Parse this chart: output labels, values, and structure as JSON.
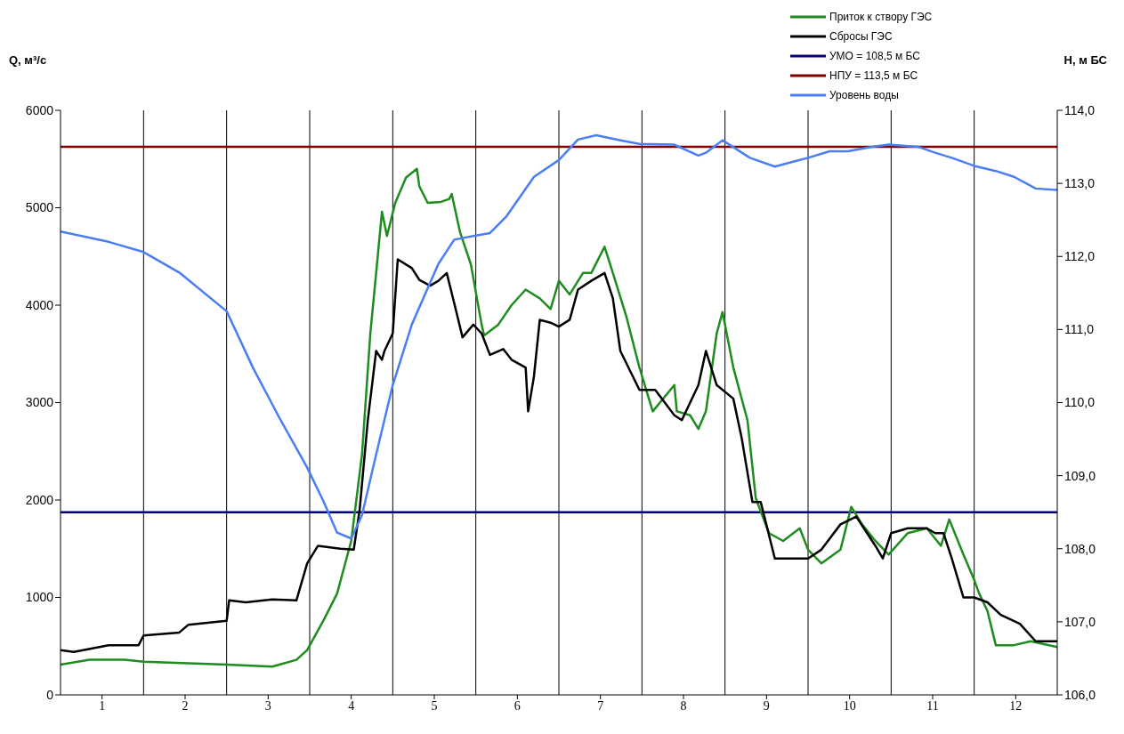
{
  "chart_data": {
    "type": "line",
    "ylabel": "Q, м³/с",
    "y2label": "H, м БС",
    "legend": "top right",
    "xlim": [
      0.5,
      12.5
    ],
    "xticks": [
      1,
      2,
      3,
      4,
      5,
      6,
      7,
      8,
      9,
      10,
      11,
      12
    ],
    "ylim": [
      0,
      6000
    ],
    "yticks": [
      0,
      1000,
      2000,
      3000,
      4000,
      5000,
      6000
    ],
    "y2lim": [
      106,
      114
    ],
    "y2ticks": [
      {
        "value": 106,
        "label": "106,0"
      },
      {
        "value": 107,
        "label": "107,0"
      },
      {
        "value": 108,
        "label": "108,0"
      },
      {
        "value": 109,
        "label": "109,0"
      },
      {
        "value": 110,
        "label": "110,0"
      },
      {
        "value": 111,
        "label": "111,0"
      },
      {
        "value": 112,
        "label": "112,0"
      },
      {
        "value": 113,
        "label": "113,0"
      },
      {
        "value": 114,
        "label": "114,0"
      }
    ],
    "series": [
      {
        "name": "Приток к створу ГЭС",
        "color": "#1e8c1e",
        "x": [
          0.5,
          0.85,
          1.27,
          1.5,
          2.5,
          3.05,
          3.34,
          3.47,
          3.67,
          3.83,
          4.0,
          4.13,
          4.23,
          4.3,
          4.37,
          4.43,
          4.53,
          4.66,
          4.79,
          4.82,
          4.92,
          5.08,
          5.18,
          5.21,
          5.31,
          5.44,
          5.57,
          5.6,
          5.77,
          5.93,
          6.1,
          6.27,
          6.4,
          6.5,
          6.63,
          6.79,
          6.89,
          7.05,
          7.15,
          7.31,
          7.47,
          7.63,
          7.89,
          7.92,
          8.08,
          8.18,
          8.27,
          8.4,
          8.47,
          8.6,
          8.77,
          8.87,
          9.03,
          9.2,
          9.4,
          9.5,
          9.66,
          9.89,
          10.02,
          10.15,
          10.31,
          10.47,
          10.7,
          10.93,
          11.1,
          11.2,
          11.37,
          11.5,
          11.56,
          11.66,
          11.76,
          11.98,
          12.18,
          12.5
        ],
        "values": [
          310,
          360,
          360,
          340,
          310,
          290,
          360,
          460,
          770,
          1040,
          1580,
          2470,
          3710,
          4330,
          4960,
          4710,
          5050,
          5310,
          5400,
          5220,
          5050,
          5060,
          5090,
          5140,
          4750,
          4420,
          3800,
          3690,
          3800,
          4000,
          4160,
          4070,
          3960,
          4250,
          4110,
          4330,
          4330,
          4600,
          4330,
          3890,
          3360,
          2910,
          3180,
          2910,
          2870,
          2730,
          2910,
          3710,
          3930,
          3360,
          2820,
          2020,
          1660,
          1580,
          1710,
          1490,
          1350,
          1490,
          1930,
          1750,
          1580,
          1440,
          1660,
          1710,
          1530,
          1800,
          1440,
          1180,
          1040,
          860,
          510,
          510,
          550,
          490
        ]
      },
      {
        "name": "Сбросы ГЭС",
        "color": "#000000",
        "x": [
          0.5,
          0.66,
          1.08,
          1.44,
          1.5,
          1.93,
          2.04,
          2.5,
          2.53,
          2.73,
          3.05,
          3.34,
          3.47,
          3.6,
          3.87,
          4.03,
          4.1,
          4.2,
          4.3,
          4.37,
          4.4,
          4.5,
          4.56,
          4.73,
          4.82,
          4.95,
          5.05,
          5.15,
          5.24,
          5.34,
          5.47,
          5.57,
          5.67,
          5.83,
          5.93,
          6.1,
          6.13,
          6.2,
          6.27,
          6.4,
          6.5,
          6.63,
          6.73,
          6.89,
          7.05,
          7.15,
          7.24,
          7.47,
          7.66,
          7.89,
          7.98,
          8.08,
          8.18,
          8.27,
          8.4,
          8.6,
          8.7,
          8.83,
          8.93,
          9.1,
          9.37,
          9.5,
          9.66,
          9.89,
          10.08,
          10.31,
          10.4,
          10.5,
          10.7,
          10.93,
          11.03,
          11.13,
          11.23,
          11.37,
          11.5,
          11.66,
          11.82,
          12.05,
          12.24,
          12.5
        ],
        "values": [
          460,
          440,
          510,
          510,
          610,
          640,
          720,
          760,
          970,
          950,
          980,
          970,
          1350,
          1530,
          1500,
          1490,
          1890,
          2820,
          3530,
          3440,
          3530,
          3710,
          4470,
          4380,
          4260,
          4200,
          4250,
          4330,
          4020,
          3670,
          3800,
          3710,
          3490,
          3550,
          3440,
          3360,
          2910,
          3270,
          3850,
          3820,
          3780,
          3850,
          4160,
          4250,
          4330,
          4070,
          3530,
          3130,
          3130,
          2870,
          2820,
          3000,
          3180,
          3530,
          3180,
          3040,
          2640,
          1980,
          1980,
          1400,
          1400,
          1400,
          1490,
          1750,
          1830,
          1530,
          1400,
          1660,
          1710,
          1710,
          1660,
          1660,
          1400,
          1000,
          1000,
          950,
          820,
          730,
          550,
          550
        ]
      },
      {
        "name": "Уровень воды",
        "color": "#4a7ef5",
        "axis": "y2",
        "x": [
          0.5,
          1.08,
          1.5,
          1.93,
          2.5,
          2.82,
          3.15,
          3.47,
          3.67,
          3.83,
          4.0,
          4.13,
          4.3,
          4.5,
          4.73,
          5.05,
          5.24,
          5.47,
          5.67,
          5.87,
          6.2,
          6.5,
          6.73,
          6.95,
          7.24,
          7.47,
          7.89,
          8.18,
          8.27,
          8.47,
          8.8,
          9.1,
          9.3,
          9.5,
          9.76,
          9.98,
          10.27,
          10.47,
          10.83,
          11.03,
          11.23,
          11.5,
          11.76,
          11.98,
          12.24,
          12.5
        ],
        "values": [
          112.34,
          112.2,
          112.06,
          111.78,
          111.25,
          110.47,
          109.76,
          109.11,
          108.64,
          108.22,
          108.14,
          108.46,
          109.29,
          110.24,
          111.07,
          111.9,
          112.23,
          112.28,
          112.32,
          112.55,
          113.09,
          113.32,
          113.6,
          113.66,
          113.59,
          113.54,
          113.53,
          113.38,
          113.42,
          113.59,
          113.35,
          113.23,
          113.29,
          113.35,
          113.44,
          113.44,
          113.5,
          113.53,
          113.5,
          113.42,
          113.35,
          113.24,
          113.17,
          113.09,
          112.93,
          112.91
        ]
      }
    ],
    "ref_lines": [
      {
        "axis": "x",
        "value": 1.5,
        "color": "#000000"
      },
      {
        "axis": "x",
        "value": 2.5,
        "color": "#000000"
      },
      {
        "axis": "x",
        "value": 3.5,
        "color": "#000000"
      },
      {
        "axis": "x",
        "value": 4.5,
        "color": "#000000"
      },
      {
        "axis": "x",
        "value": 5.5,
        "color": "#000000"
      },
      {
        "axis": "x",
        "value": 6.5,
        "color": "#000000"
      },
      {
        "axis": "x",
        "value": 7.5,
        "color": "#000000"
      },
      {
        "axis": "x",
        "value": 8.5,
        "color": "#000000"
      },
      {
        "axis": "x",
        "value": 9.5,
        "color": "#000000"
      },
      {
        "axis": "x",
        "value": 10.5,
        "color": "#000000"
      },
      {
        "axis": "x",
        "value": 11.5,
        "color": "#000000"
      },
      {
        "axis": "y2",
        "value": 108.5,
        "label": "УМО = 108,5 м БС",
        "color": "#000080"
      },
      {
        "axis": "y2",
        "value": 113.5,
        "label": "НПУ  = 113,5 м БС",
        "color": "#800000"
      }
    ]
  }
}
